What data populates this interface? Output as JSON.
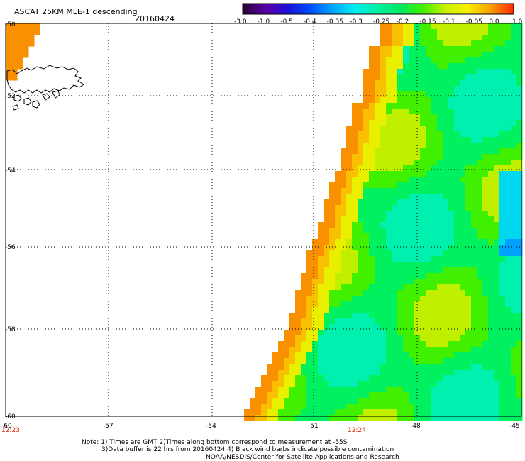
{
  "header": {
    "title": "ASCAT 25KM MLE-1 descending",
    "date": "20160424"
  },
  "colorbar": {
    "labels": [
      "-3.0",
      "-1.0",
      "-0.5",
      "-0.4",
      "-0.35",
      "-0.3",
      "-0.25",
      "-0.2",
      "-0.15",
      "-0.1",
      "-0.05",
      "0.0",
      "1.0"
    ],
    "colors": [
      "#2a0038",
      "#5a00a8",
      "#1a10d8",
      "#0050ff",
      "#00a8ff",
      "#00eef0",
      "#00f0a0",
      "#00e860",
      "#40f000",
      "#c8f000",
      "#f8f000",
      "#f8a000",
      "#ff3000"
    ]
  },
  "map": {
    "y_ticks": [
      "-50",
      "-52",
      "-54",
      "-56",
      "-58",
      "-60"
    ],
    "x_ticks": [
      "-60",
      "-57",
      "-54",
      "-51",
      "-48",
      "-45"
    ],
    "time_labels": [
      "12:23",
      "12:24"
    ],
    "time_color": "#e02000"
  },
  "footer": {
    "line1": "Note: 1) Times are GMT 2)Times along bottom correspond to measurement at -55S",
    "line2": "3)Data buffer is 22 hrs from 20160424 4) Black wind barbs indicate possible contamination",
    "line3": "NOAA/NESDIS/Center for Satellite Applications and Research"
  }
}
